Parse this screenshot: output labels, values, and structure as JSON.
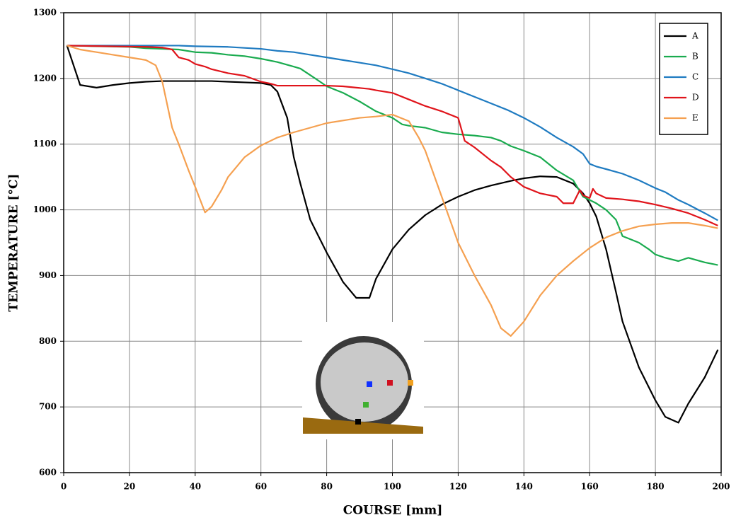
{
  "chart_data": {
    "type": "line",
    "xlabel": "COURSE [mm]",
    "ylabel": "TEMPERATURE [°C]",
    "xlim": [
      0,
      200
    ],
    "xticks": [
      0,
      20,
      40,
      60,
      80,
      100,
      120,
      140,
      160,
      180,
      200
    ],
    "ylim": [
      600,
      1300
    ],
    "yticks": [
      600,
      700,
      800,
      900,
      1000,
      1100,
      1200,
      1300
    ],
    "grid": true,
    "legend": "upper right",
    "series": [
      {
        "name": "A",
        "color": "#000000",
        "x": [
          1,
          5,
          10,
          15,
          20,
          25,
          30,
          35,
          40,
          45,
          50,
          55,
          60,
          63,
          65,
          68,
          70,
          72,
          75,
          80,
          85,
          89,
          93,
          95,
          100,
          105,
          110,
          115,
          120,
          125,
          130,
          136,
          140,
          145,
          150,
          155,
          158,
          160,
          162,
          165,
          168,
          170,
          175,
          180,
          183,
          187,
          190,
          195,
          199
        ],
        "values": [
          1250,
          1190,
          1186,
          1190,
          1193,
          1195,
          1196,
          1196,
          1196,
          1196,
          1195,
          1194,
          1193,
          1190,
          1180,
          1140,
          1080,
          1040,
          985,
          935,
          890,
          866,
          866,
          895,
          940,
          970,
          992,
          1008,
          1020,
          1030,
          1037,
          1044,
          1048,
          1051,
          1050,
          1040,
          1025,
          1010,
          990,
          940,
          875,
          830,
          760,
          710,
          685,
          676,
          705,
          745,
          787
        ]
      },
      {
        "name": "B",
        "color": "#1aab4f",
        "x": [
          1,
          20,
          25,
          30,
          35,
          40,
          45,
          50,
          55,
          60,
          65,
          70,
          72,
          75,
          78,
          80,
          85,
          90,
          95,
          100,
          103,
          105,
          110,
          115,
          120,
          125,
          130,
          133,
          136,
          140,
          145,
          150,
          155,
          158,
          160,
          162,
          165,
          168,
          170,
          175,
          178,
          180,
          183,
          187,
          190,
          195,
          199
        ],
        "values": [
          1250,
          1248,
          1246,
          1245,
          1244,
          1240,
          1239,
          1236,
          1234,
          1230,
          1225,
          1218,
          1215,
          1205,
          1195,
          1188,
          1178,
          1165,
          1150,
          1140,
          1130,
          1128,
          1125,
          1118,
          1115,
          1113,
          1110,
          1105,
          1097,
          1090,
          1080,
          1060,
          1045,
          1020,
          1015,
          1010,
          1000,
          985,
          960,
          950,
          940,
          932,
          927,
          922,
          927,
          920,
          916
        ]
      },
      {
        "name": "C",
        "color": "#1f7bc1",
        "x": [
          1,
          35,
          40,
          50,
          60,
          65,
          70,
          75,
          80,
          85,
          90,
          95,
          100,
          105,
          110,
          115,
          120,
          125,
          130,
          135,
          140,
          145,
          150,
          155,
          158,
          160,
          162,
          165,
          170,
          175,
          180,
          183,
          187,
          190,
          195,
          199
        ],
        "values": [
          1250,
          1250,
          1249,
          1248,
          1245,
          1242,
          1240,
          1236,
          1232,
          1228,
          1224,
          1220,
          1214,
          1208,
          1200,
          1192,
          1182,
          1172,
          1162,
          1152,
          1140,
          1126,
          1110,
          1096,
          1085,
          1070,
          1066,
          1062,
          1055,
          1045,
          1033,
          1027,
          1015,
          1008,
          995,
          984
        ]
      },
      {
        "name": "D",
        "color": "#e0141b",
        "x": [
          1,
          25,
          30,
          33,
          35,
          38,
          40,
          43,
          45,
          50,
          55,
          60,
          63,
          65,
          70,
          75,
          80,
          85,
          89,
          93,
          95,
          100,
          105,
          110,
          115,
          120,
          122,
          125,
          130,
          133,
          136,
          140,
          145,
          150,
          152,
          155,
          157,
          158,
          160,
          161,
          162,
          165,
          170,
          175,
          180,
          185,
          190,
          195,
          199
        ],
        "values": [
          1250,
          1248,
          1247,
          1244,
          1232,
          1228,
          1222,
          1218,
          1214,
          1208,
          1204,
          1195,
          1192,
          1189,
          1189,
          1189,
          1189,
          1188,
          1186,
          1184,
          1182,
          1178,
          1168,
          1158,
          1150,
          1140,
          1105,
          1095,
          1075,
          1065,
          1050,
          1035,
          1025,
          1020,
          1010,
          1010,
          1030,
          1022,
          1018,
          1032,
          1025,
          1018,
          1016,
          1013,
          1008,
          1002,
          995,
          985,
          976
        ]
      },
      {
        "name": "E",
        "color": "#f5a050",
        "x": [
          1,
          5,
          10,
          15,
          20,
          25,
          28,
          30,
          33,
          35,
          38,
          40,
          43,
          45,
          48,
          50,
          55,
          60,
          65,
          70,
          75,
          80,
          85,
          90,
          95,
          100,
          105,
          108,
          110,
          115,
          120,
          125,
          130,
          133,
          136,
          140,
          145,
          150,
          155,
          160,
          165,
          170,
          175,
          180,
          185,
          190,
          195,
          199
        ],
        "values": [
          1250,
          1244,
          1240,
          1236,
          1232,
          1228,
          1220,
          1195,
          1125,
          1100,
          1060,
          1035,
          996,
          1005,
          1030,
          1050,
          1080,
          1098,
          1110,
          1118,
          1125,
          1132,
          1136,
          1140,
          1142,
          1145,
          1135,
          1110,
          1090,
          1020,
          950,
          900,
          855,
          820,
          808,
          830,
          870,
          900,
          922,
          942,
          958,
          968,
          975,
          978,
          980,
          980,
          976,
          972
        ]
      }
    ]
  }
}
